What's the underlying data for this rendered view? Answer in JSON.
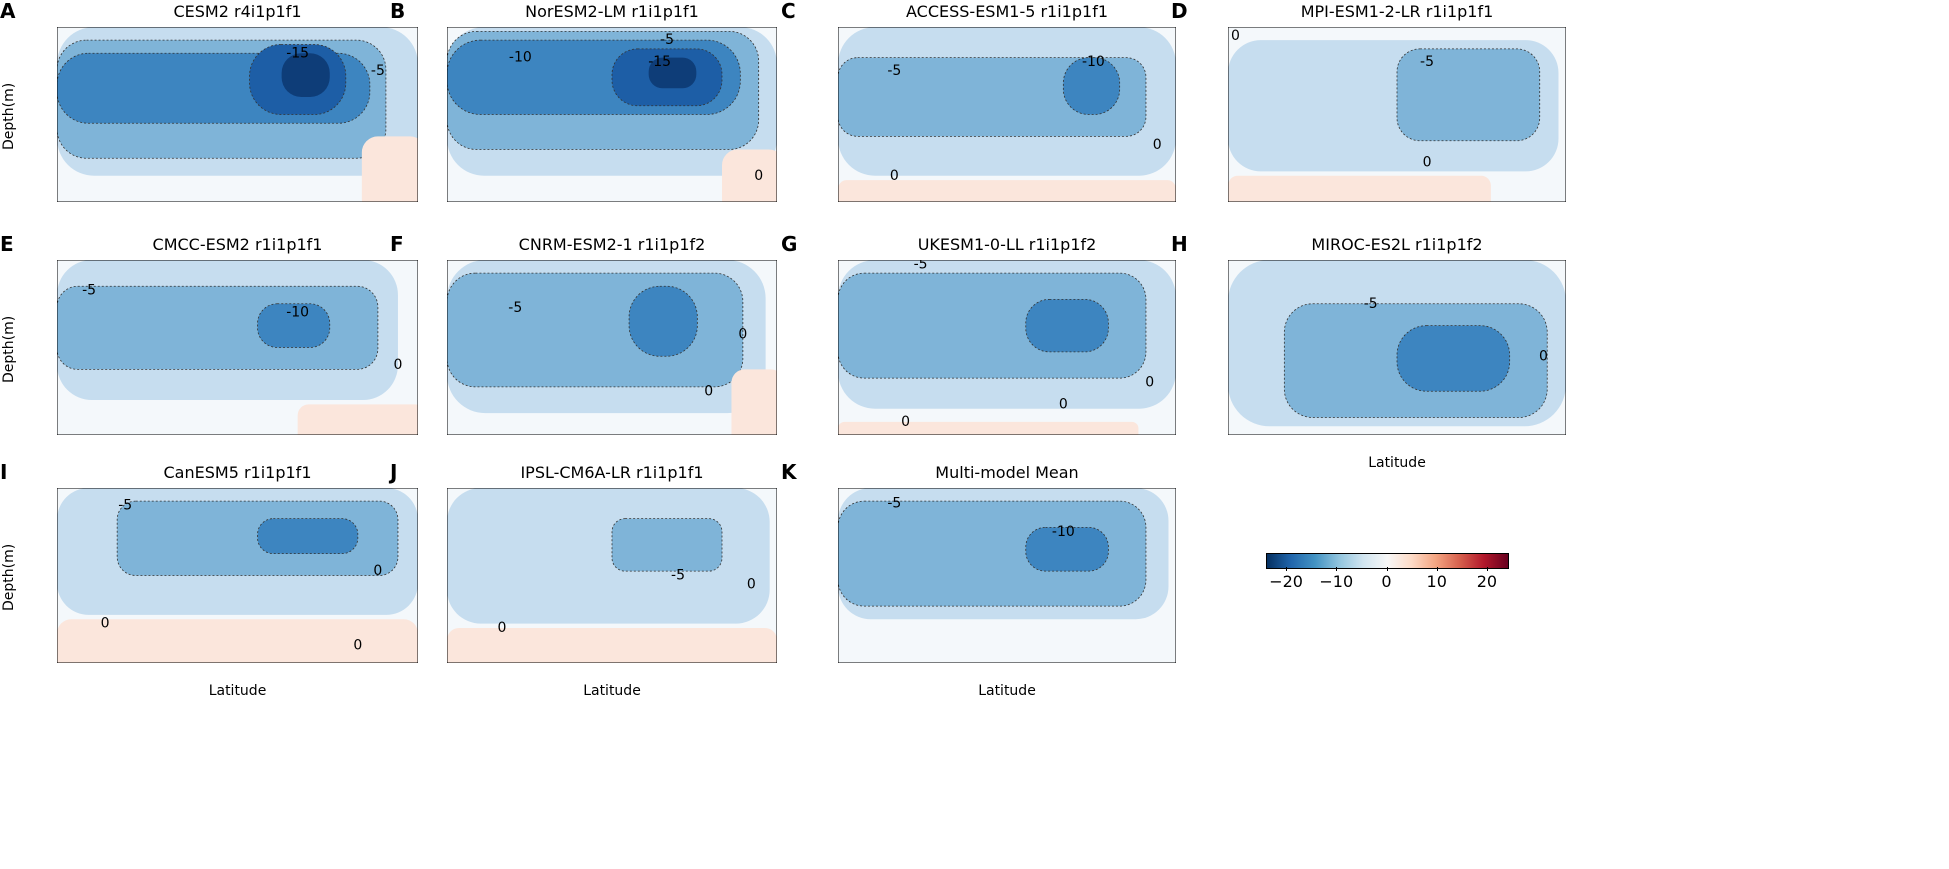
{
  "chart_data": {
    "type": "heatmap",
    "subtype": "filled-contour",
    "xlabel": "Latitude",
    "ylabel": "Depth(m)",
    "ylim": [
      4000,
      0
    ],
    "yticks": [
      0,
      1000,
      2000,
      3000,
      4000
    ],
    "colorbar": {
      "range": [
        -24,
        24
      ],
      "ticks": [
        "−20",
        "−10",
        "0",
        "10",
        "20"
      ],
      "colormap": "RdBu_r"
    },
    "panels": [
      {
        "letter": "A",
        "title": "CESM2 r4i1p1f1",
        "xlim": [
          -20,
          70
        ],
        "xticks": [
          -20,
          0,
          20,
          40,
          60
        ],
        "regions": [
          {
            "v": -2,
            "lat": [
              -20,
              70
            ],
            "d": [
              0,
              3400
            ]
          },
          {
            "v": -5,
            "lat": [
              -20,
              62
            ],
            "d": [
              300,
              3000
            ]
          },
          {
            "v": -10,
            "lat": [
              -20,
              58
            ],
            "d": [
              600,
              2200
            ]
          },
          {
            "v": -15,
            "lat": [
              28,
              52
            ],
            "d": [
              400,
              2000
            ]
          },
          {
            "v": -20,
            "lat": [
              36,
              48
            ],
            "d": [
              600,
              1600
            ]
          },
          {
            "v": 1,
            "lat": [
              56,
              72
            ],
            "d": [
              2500,
              4300
            ]
          }
        ],
        "labels": [
          {
            "t": "-15",
            "lat": 40,
            "d": 600
          },
          {
            "t": "-5",
            "lat": 60,
            "d": 1000
          }
        ]
      },
      {
        "letter": "B",
        "title": "NorESM2-LM r1i1p1f1",
        "xlim": [
          -20,
          70
        ],
        "xticks": [
          -20,
          0,
          20,
          40,
          60
        ],
        "regions": [
          {
            "v": -2,
            "lat": [
              -20,
              70
            ],
            "d": [
              0,
              3400
            ]
          },
          {
            "v": -5,
            "lat": [
              -20,
              65
            ],
            "d": [
              100,
              2800
            ]
          },
          {
            "v": -10,
            "lat": [
              -20,
              60
            ],
            "d": [
              300,
              2000
            ]
          },
          {
            "v": -15,
            "lat": [
              25,
              55
            ],
            "d": [
              500,
              1800
            ]
          },
          {
            "v": -20,
            "lat": [
              35,
              48
            ],
            "d": [
              700,
              1400
            ]
          },
          {
            "v": 1,
            "lat": [
              55,
              72
            ],
            "d": [
              2800,
              4300
            ]
          }
        ],
        "labels": [
          {
            "t": "-5",
            "lat": 40,
            "d": 300
          },
          {
            "t": "-10",
            "lat": 0,
            "d": 700
          },
          {
            "t": "-15",
            "lat": 38,
            "d": 800
          },
          {
            "t": "0",
            "lat": 65,
            "d": 3400
          }
        ]
      },
      {
        "letter": "C",
        "title": "ACCESS-ESM1-5 r1i1p1f1",
        "xlim": [
          -20,
          70
        ],
        "xticks": [
          -20,
          0,
          20,
          40,
          60
        ],
        "regions": [
          {
            "v": -2,
            "lat": [
              -20,
              70
            ],
            "d": [
              0,
              3400
            ]
          },
          {
            "v": -5,
            "lat": [
              -20,
              62
            ],
            "d": [
              700,
              2500
            ]
          },
          {
            "v": -10,
            "lat": [
              40,
              55
            ],
            "d": [
              700,
              2000
            ]
          },
          {
            "v": 1,
            "lat": [
              -20,
              70
            ],
            "d": [
              3500,
              4300
            ]
          }
        ],
        "labels": [
          {
            "t": "-5",
            "lat": -5,
            "d": 1000
          },
          {
            "t": "-10",
            "lat": 48,
            "d": 800
          },
          {
            "t": "0",
            "lat": -5,
            "d": 3400
          },
          {
            "t": "0",
            "lat": 65,
            "d": 2700
          }
        ]
      },
      {
        "letter": "D",
        "title": "MPI-ESM1-2-LR r1i1p1f1",
        "xlim": [
          -20,
          70
        ],
        "xticks": [
          -20,
          0,
          20,
          40,
          60
        ],
        "regions": [
          {
            "v": -2,
            "lat": [
              -20,
              68
            ],
            "d": [
              300,
              3300
            ]
          },
          {
            "v": -5,
            "lat": [
              25,
              63
            ],
            "d": [
              500,
              2600
            ]
          },
          {
            "v": 1,
            "lat": [
              -20,
              50
            ],
            "d": [
              3400,
              4300
            ]
          }
        ],
        "labels": [
          {
            "t": "0",
            "lat": -18,
            "d": 200
          },
          {
            "t": "-5",
            "lat": 33,
            "d": 800
          },
          {
            "t": "0",
            "lat": 33,
            "d": 3100
          }
        ]
      },
      {
        "letter": "E",
        "title": "CMCC-ESM2 r1i1p1f1",
        "xlim": [
          -20,
          70
        ],
        "xticks": [
          -20,
          0,
          20,
          40,
          60
        ],
        "regions": [
          {
            "v": -2,
            "lat": [
              -20,
              65
            ],
            "d": [
              0,
              3200
            ]
          },
          {
            "v": -5,
            "lat": [
              -20,
              60
            ],
            "d": [
              600,
              2500
            ]
          },
          {
            "v": -10,
            "lat": [
              30,
              48
            ],
            "d": [
              1000,
              2000
            ]
          },
          {
            "v": 1,
            "lat": [
              40,
              72
            ],
            "d": [
              3300,
              4300
            ]
          }
        ],
        "labels": [
          {
            "t": "-5",
            "lat": -12,
            "d": 700
          },
          {
            "t": "-10",
            "lat": 40,
            "d": 1200
          },
          {
            "t": "0",
            "lat": 65,
            "d": 2400
          }
        ]
      },
      {
        "letter": "F",
        "title": "CNRM-ESM2-1 r1i1p1f2",
        "xlim": [
          110,
          255
        ],
        "xticks": [
          120,
          140,
          160,
          180,
          200,
          220,
          240
        ],
        "regions": [
          {
            "v": -2,
            "lat": [
              110,
              250
            ],
            "d": [
              0,
              3500
            ]
          },
          {
            "v": -5,
            "lat": [
              110,
              240
            ],
            "d": [
              300,
              2900
            ]
          },
          {
            "v": -10,
            "lat": [
              190,
              220
            ],
            "d": [
              600,
              2200
            ]
          },
          {
            "v": 1,
            "lat": [
              235,
              258
            ],
            "d": [
              2500,
              4300
            ]
          }
        ],
        "labels": [
          {
            "t": "-5",
            "lat": 140,
            "d": 1100
          },
          {
            "t": "0",
            "lat": 240,
            "d": 1700
          },
          {
            "t": "0",
            "lat": 225,
            "d": 3000
          }
        ]
      },
      {
        "letter": "G",
        "title": "UKESM1-0-LL r1i1p1f2",
        "xlim": [
          -20,
          70
        ],
        "xticks": [
          -20,
          0,
          20,
          40,
          60
        ],
        "regions": [
          {
            "v": -2,
            "lat": [
              -20,
              70
            ],
            "d": [
              0,
              3400
            ]
          },
          {
            "v": -5,
            "lat": [
              -20,
              62
            ],
            "d": [
              300,
              2700
            ]
          },
          {
            "v": -10,
            "lat": [
              30,
              52
            ],
            "d": [
              900,
              2100
            ]
          },
          {
            "v": 1,
            "lat": [
              -20,
              60
            ],
            "d": [
              3700,
              4300
            ]
          }
        ],
        "labels": [
          {
            "t": "-5",
            "lat": 2,
            "d": 100
          },
          {
            "t": "0",
            "lat": -2,
            "d": 3700
          },
          {
            "t": "0",
            "lat": 40,
            "d": 3300
          },
          {
            "t": "0",
            "lat": 63,
            "d": 2800
          }
        ]
      },
      {
        "letter": "H",
        "title": "MIROC-ES2L r1i1p1f2",
        "xlim": [
          -20,
          70
        ],
        "xticks": [
          -20,
          0,
          20,
          40,
          60
        ],
        "regions": [
          {
            "v": -2,
            "lat": [
              -20,
              70
            ],
            "d": [
              0,
              3800
            ]
          },
          {
            "v": -5,
            "lat": [
              -5,
              65
            ],
            "d": [
              1000,
              3600
            ]
          },
          {
            "v": -10,
            "lat": [
              25,
              55
            ],
            "d": [
              1500,
              3000
            ]
          }
        ],
        "labels": [
          {
            "t": "-5",
            "lat": 18,
            "d": 1000
          },
          {
            "t": "0",
            "lat": 64,
            "d": 2200
          }
        ],
        "xlabel": true
      },
      {
        "letter": "I",
        "title": "CanESM5 r1i1p1f1",
        "xlim": [
          -20,
          70
        ],
        "xticks": [
          -20,
          0,
          20,
          40,
          60
        ],
        "regions": [
          {
            "v": -2,
            "lat": [
              -20,
              70
            ],
            "d": [
              0,
              2900
            ]
          },
          {
            "v": -5,
            "lat": [
              -5,
              65
            ],
            "d": [
              300,
              2000
            ]
          },
          {
            "v": -10,
            "lat": [
              30,
              55
            ],
            "d": [
              700,
              1500
            ]
          },
          {
            "v": 1,
            "lat": [
              -20,
              70
            ],
            "d": [
              3000,
              4300
            ]
          }
        ],
        "labels": [
          {
            "t": "-5",
            "lat": -3,
            "d": 400
          },
          {
            "t": "0",
            "lat": -8,
            "d": 3100
          },
          {
            "t": "0",
            "lat": 60,
            "d": 1900
          },
          {
            "t": "0",
            "lat": 55,
            "d": 3600
          }
        ],
        "xlabel": true
      },
      {
        "letter": "J",
        "title": "IPSL-CM6A-LR r1i1p1f1",
        "xlim": [
          -20,
          70
        ],
        "xticks": [
          -20,
          0,
          20,
          40,
          60
        ],
        "regions": [
          {
            "v": -2,
            "lat": [
              -20,
              68
            ],
            "d": [
              0,
              3100
            ]
          },
          {
            "v": -5,
            "lat": [
              25,
              55
            ],
            "d": [
              700,
              1900
            ]
          },
          {
            "v": 1,
            "lat": [
              -20,
              70
            ],
            "d": [
              3200,
              4300
            ]
          }
        ],
        "labels": [
          {
            "t": "-5",
            "lat": 43,
            "d": 2000
          },
          {
            "t": "0",
            "lat": -5,
            "d": 3200
          },
          {
            "t": "0",
            "lat": 63,
            "d": 2200
          }
        ],
        "xlabel": true
      },
      {
        "letter": "K",
        "title": "Multi-model Mean",
        "xlim": [
          -20,
          70
        ],
        "xticks": [
          -20,
          0,
          20,
          40,
          60
        ],
        "regions": [
          {
            "v": -2,
            "lat": [
              -20,
              68
            ],
            "d": [
              0,
              3000
            ]
          },
          {
            "v": -5,
            "lat": [
              -20,
              62
            ],
            "d": [
              300,
              2700
            ]
          },
          {
            "v": -10,
            "lat": [
              30,
              52
            ],
            "d": [
              900,
              1900
            ]
          }
        ],
        "labels": [
          {
            "t": "-5",
            "lat": -5,
            "d": 350
          },
          {
            "t": "-10",
            "lat": 40,
            "d": 1000
          }
        ],
        "xlabel": true
      }
    ]
  }
}
